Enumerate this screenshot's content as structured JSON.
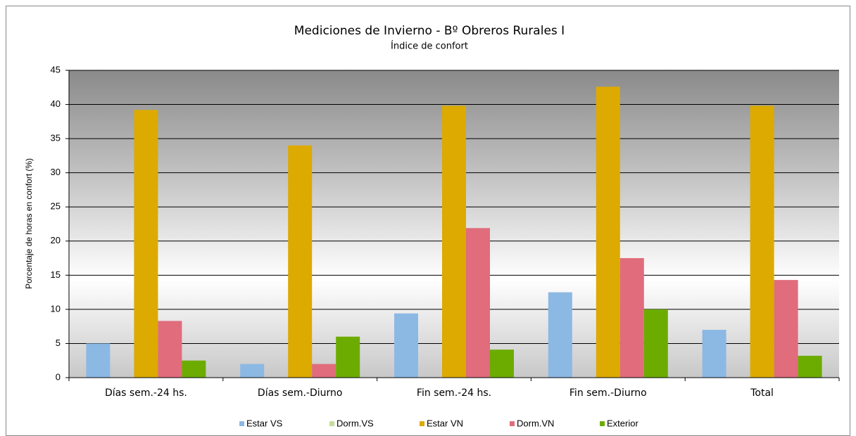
{
  "chart_data": {
    "type": "bar",
    "title": "Mediciones de Invierno - Bº Obreros Rurales I",
    "subtitle": "Índice de confort",
    "y_label": "Porcentaje de horas en confort (%)",
    "categories": [
      "Días sem.-24 hs.",
      "Días sem.-Diurno",
      "Fin sem.-24 hs.",
      "Fin sem.-Diurno",
      "Total"
    ],
    "series": [
      {
        "name": "Estar VS",
        "color": "#8cb8e4",
        "values": [
          5,
          2,
          9.4,
          12.5,
          7
        ]
      },
      {
        "name": "Dorm.VS",
        "color": "#c4dc9c",
        "values": [
          0,
          0,
          0,
          0,
          0
        ]
      },
      {
        "name": "Estar VN",
        "color": "#dcaa00",
        "values": [
          39.2,
          34,
          39.8,
          42.6,
          39.8
        ]
      },
      {
        "name": "Dorm.VN",
        "color": "#e06c7c",
        "values": [
          8.3,
          2,
          21.9,
          17.5,
          14.3
        ]
      },
      {
        "name": "Exterior",
        "color": "#6cac00",
        "values": [
          2.5,
          6,
          4.1,
          10,
          3.2
        ]
      }
    ],
    "ylim": [
      0,
      45
    ],
    "yticks": [
      0,
      5,
      10,
      15,
      20,
      25,
      30,
      35,
      40,
      45
    ],
    "grid": true
  }
}
